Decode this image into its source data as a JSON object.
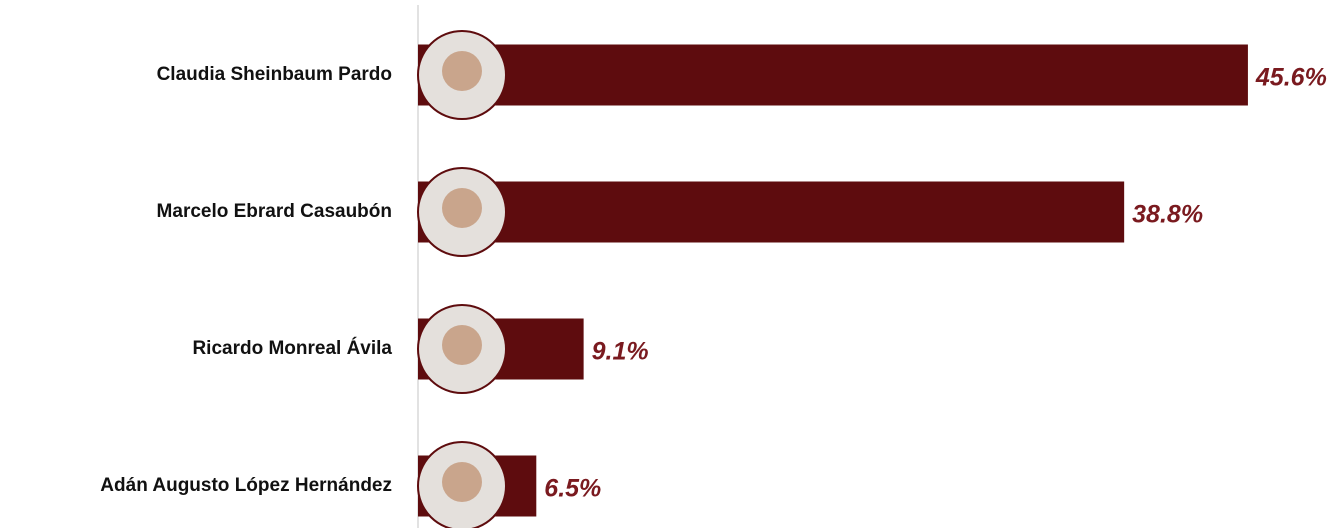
{
  "chart_data": {
    "type": "barh",
    "categories": [
      "Claudia Sheinbaum Pardo",
      "Marcelo Ebrard Casaubón",
      "Ricardo Monreal Ávila",
      "Adán Augusto López Hernández"
    ],
    "values": [
      45.6,
      38.8,
      9.1,
      6.5
    ],
    "value_labels": [
      "45.6%",
      "38.8%",
      "9.1%",
      "6.5%"
    ],
    "color": "#5e0c0e",
    "xlim": [
      0,
      50
    ]
  }
}
